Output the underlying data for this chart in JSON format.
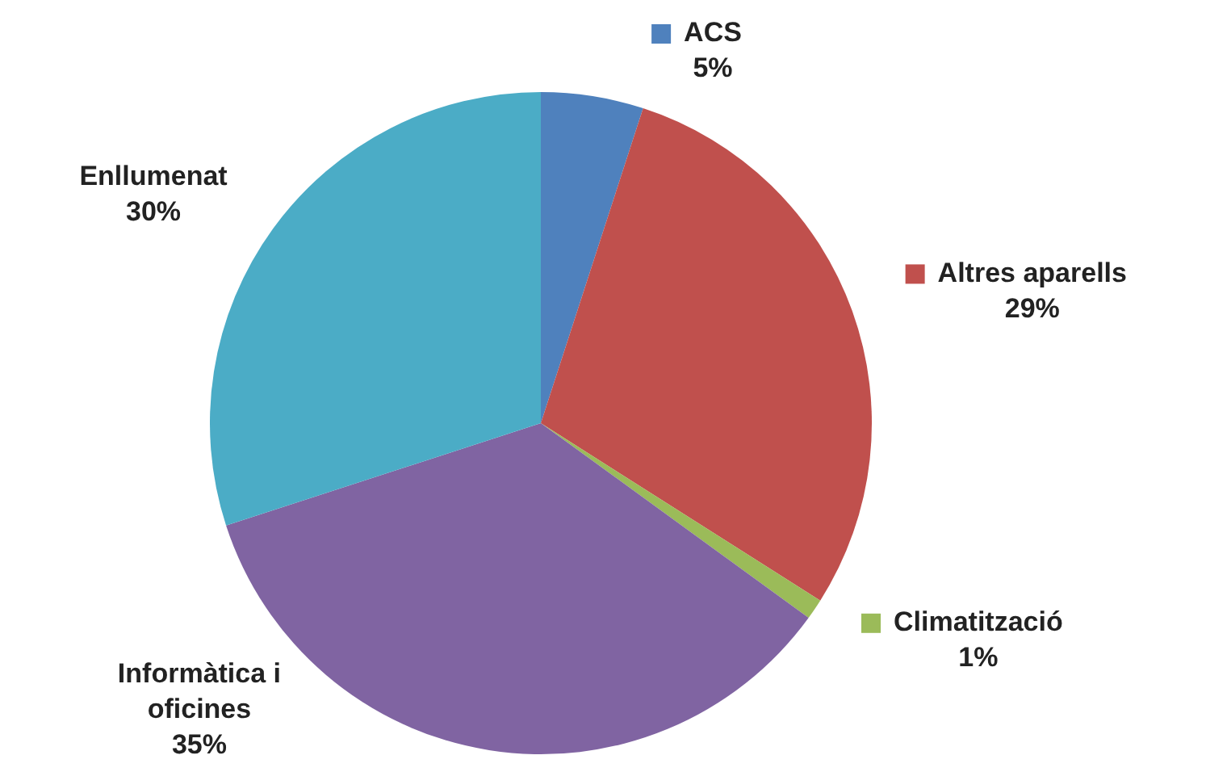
{
  "chart_data": {
    "type": "pie",
    "categories": [
      "ACS",
      "Altres aparells",
      "Climatització",
      "Informàtica i oficines",
      "Enllumenat"
    ],
    "values": [
      5,
      29,
      1,
      35,
      30
    ],
    "value_labels": [
      "5%",
      "29%",
      "1%",
      "35%",
      "30%"
    ],
    "colors": [
      "#4f81bd",
      "#c0504d",
      "#9bbb59",
      "#8064a2",
      "#4bacc6"
    ],
    "legend": "right"
  }
}
